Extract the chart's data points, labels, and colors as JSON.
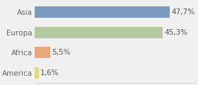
{
  "categories": [
    "Asia",
    "Europa",
    "Africa",
    "America"
  ],
  "values": [
    47.7,
    45.3,
    5.5,
    1.6
  ],
  "labels": [
    "47,7%",
    "45,3%",
    "5,5%",
    "1,6%"
  ],
  "bar_colors": [
    "#7a9bbf",
    "#b5c9a0",
    "#e8a87c",
    "#e8d87a"
  ],
  "background_color": "#f0f0f0",
  "xlim": [
    0,
    57
  ],
  "bar_height": 0.55,
  "label_fontsize": 7.5,
  "tick_fontsize": 7.5,
  "grid_color": "#ffffff",
  "figsize": [
    2.8,
    1.2
  ],
  "dpi": 100
}
